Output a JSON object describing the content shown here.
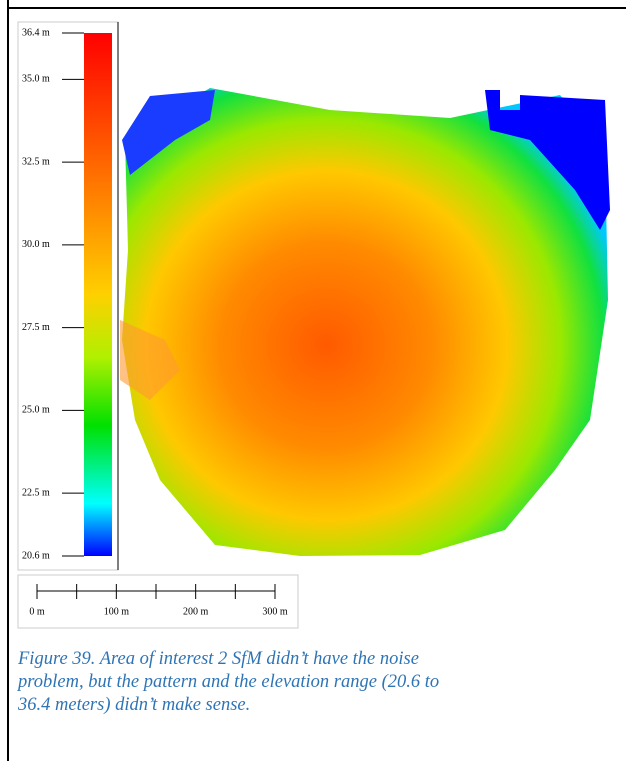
{
  "colorbar": {
    "ticks": [
      {
        "value": 36.4,
        "label": "36.4 m"
      },
      {
        "value": 35.0,
        "label": "35.0 m"
      },
      {
        "value": 32.5,
        "label": "32.5 m"
      },
      {
        "value": 30.0,
        "label": "30.0 m"
      },
      {
        "value": 27.5,
        "label": "27.5 m"
      },
      {
        "value": 25.0,
        "label": "25.0 m"
      },
      {
        "value": 22.5,
        "label": "22.5 m"
      },
      {
        "value": 20.6,
        "label": "20.6 m"
      }
    ]
  },
  "scale_bar": {
    "ticks": [
      0,
      50,
      100,
      150,
      200,
      250,
      300
    ],
    "labels": [
      {
        "value": 0,
        "label": "0 m"
      },
      {
        "value": 100,
        "label": "100 m"
      },
      {
        "value": 200,
        "label": "200 m"
      },
      {
        "value": 300,
        "label": "300 m"
      }
    ]
  },
  "caption": {
    "lines": [
      "Figure 39. Area of interest 2 SfM didn’t have the noise",
      "problem, but the pattern and the elevation range (20.6 to",
      "36.4 meters) didn’t make sense."
    ]
  }
}
